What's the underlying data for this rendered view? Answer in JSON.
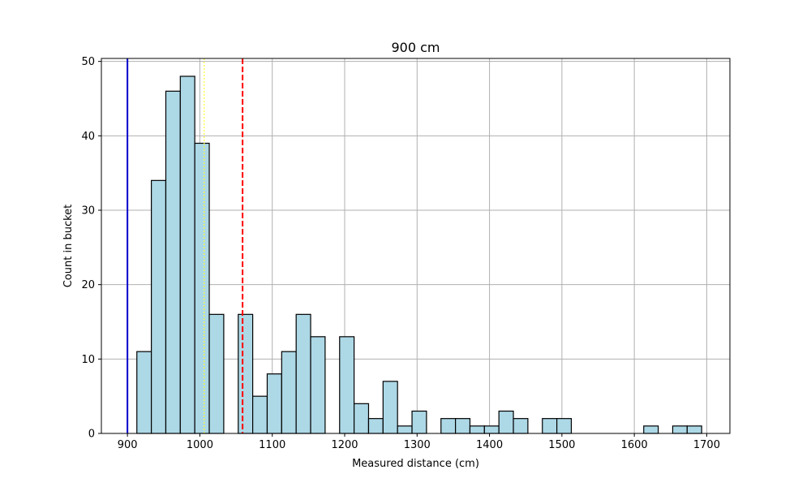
{
  "chart_data": {
    "type": "bar",
    "title": "900 cm",
    "xlabel": "Measured distance (cm)",
    "ylabel": "Count in bucket",
    "xlim": [
      864,
      1732
    ],
    "ylim": [
      0,
      50.4
    ],
    "grid": true,
    "bin_width": 20,
    "x_ticks": [
      900,
      1000,
      1100,
      1200,
      1300,
      1400,
      1500,
      1600,
      1700
    ],
    "y_ticks": [
      0,
      10,
      20,
      30,
      40,
      50
    ],
    "bars": [
      {
        "x": 913,
        "value": 11
      },
      {
        "x": 933,
        "value": 34
      },
      {
        "x": 953,
        "value": 46
      },
      {
        "x": 973,
        "value": 48
      },
      {
        "x": 993,
        "value": 39
      },
      {
        "x": 1013,
        "value": 16
      },
      {
        "x": 1033,
        "value": 0
      },
      {
        "x": 1053,
        "value": 16
      },
      {
        "x": 1073,
        "value": 5
      },
      {
        "x": 1093,
        "value": 8
      },
      {
        "x": 1113,
        "value": 11
      },
      {
        "x": 1133,
        "value": 16
      },
      {
        "x": 1153,
        "value": 13
      },
      {
        "x": 1173,
        "value": 0
      },
      {
        "x": 1193,
        "value": 13
      },
      {
        "x": 1213,
        "value": 4
      },
      {
        "x": 1233,
        "value": 2
      },
      {
        "x": 1253,
        "value": 7
      },
      {
        "x": 1273,
        "value": 1
      },
      {
        "x": 1293,
        "value": 3
      },
      {
        "x": 1313,
        "value": 0
      },
      {
        "x": 1333,
        "value": 2
      },
      {
        "x": 1353,
        "value": 2
      },
      {
        "x": 1373,
        "value": 1
      },
      {
        "x": 1393,
        "value": 1
      },
      {
        "x": 1413,
        "value": 3
      },
      {
        "x": 1433,
        "value": 2
      },
      {
        "x": 1453,
        "value": 0
      },
      {
        "x": 1473,
        "value": 2
      },
      {
        "x": 1493,
        "value": 2
      },
      {
        "x": 1513,
        "value": 0
      },
      {
        "x": 1533,
        "value": 0
      },
      {
        "x": 1553,
        "value": 0
      },
      {
        "x": 1573,
        "value": 0
      },
      {
        "x": 1593,
        "value": 0
      },
      {
        "x": 1613,
        "value": 1
      },
      {
        "x": 1633,
        "value": 0
      },
      {
        "x": 1653,
        "value": 1
      },
      {
        "x": 1673,
        "value": 1
      }
    ],
    "reference_lines": [
      {
        "x": 900,
        "color": "#0000cc",
        "style": "solid"
      },
      {
        "x": 1006,
        "color": "#ffff33",
        "style": "dotted"
      },
      {
        "x": 1059,
        "color": "#ff0000",
        "style": "dashed"
      }
    ],
    "bar_fill": "#add8e6",
    "bar_edge": "#000000",
    "grid_color": "#b0b0b0"
  }
}
